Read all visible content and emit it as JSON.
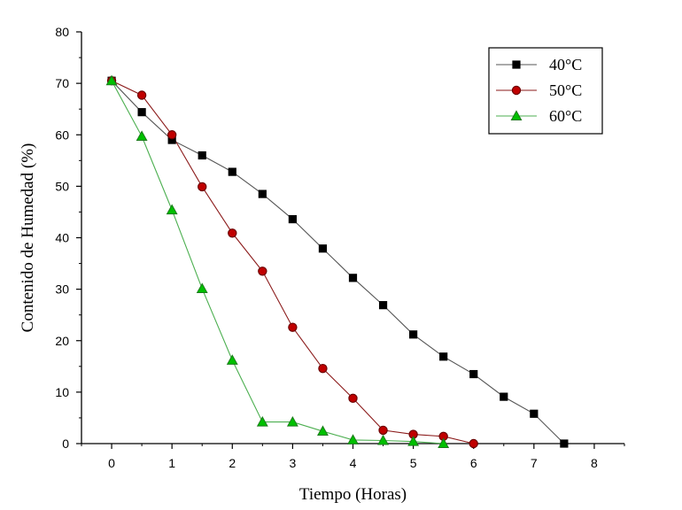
{
  "chart_data": {
    "type": "line",
    "title": "",
    "xlabel": "Tiempo (Horas)",
    "ylabel": "Contenido de Humedad (%)",
    "xlim": [
      -0.5,
      8.5
    ],
    "ylim": [
      0,
      80
    ],
    "xticks": [
      0,
      1,
      2,
      3,
      4,
      5,
      6,
      7,
      8
    ],
    "yticks": [
      0,
      10,
      20,
      30,
      40,
      50,
      60,
      70,
      80
    ],
    "grid": false,
    "legend_position": "top-right",
    "series": [
      {
        "name": "40°C",
        "marker": "square",
        "line_color": "#555555",
        "marker_fill": "#000000",
        "marker_stroke": "#000000",
        "x": [
          0,
          0.5,
          1,
          1.5,
          2,
          2.5,
          3,
          3.5,
          4,
          4.5,
          5,
          5.5,
          6,
          6.5,
          7,
          7.5
        ],
        "y": [
          70.5,
          64.4,
          59.0,
          56.0,
          52.8,
          48.5,
          43.6,
          37.9,
          32.2,
          26.9,
          21.2,
          16.9,
          13.5,
          9.1,
          5.8,
          0.0
        ]
      },
      {
        "name": "50°C",
        "marker": "circle",
        "line_color": "#8b1a1a",
        "marker_fill": "#c00000",
        "marker_stroke": "#6b0000",
        "x": [
          0,
          0.5,
          1,
          1.5,
          2,
          2.5,
          3,
          3.5,
          4,
          4.5,
          5,
          5.5,
          6
        ],
        "y": [
          70.5,
          67.7,
          60.0,
          49.9,
          40.9,
          33.5,
          22.6,
          14.6,
          8.8,
          2.6,
          1.8,
          1.4,
          0.0
        ]
      },
      {
        "name": "60°C",
        "marker": "triangle",
        "line_color": "#4caf50",
        "marker_fill": "#00c000",
        "marker_stroke": "#1b7a1b",
        "x": [
          0,
          0.5,
          1,
          1.5,
          2,
          2.5,
          3,
          3.5,
          4,
          4.5,
          5,
          5.5
        ],
        "y": [
          70.5,
          59.7,
          45.4,
          30.1,
          16.2,
          4.2,
          4.2,
          2.4,
          0.7,
          0.6,
          0.4,
          0.0
        ]
      }
    ]
  }
}
